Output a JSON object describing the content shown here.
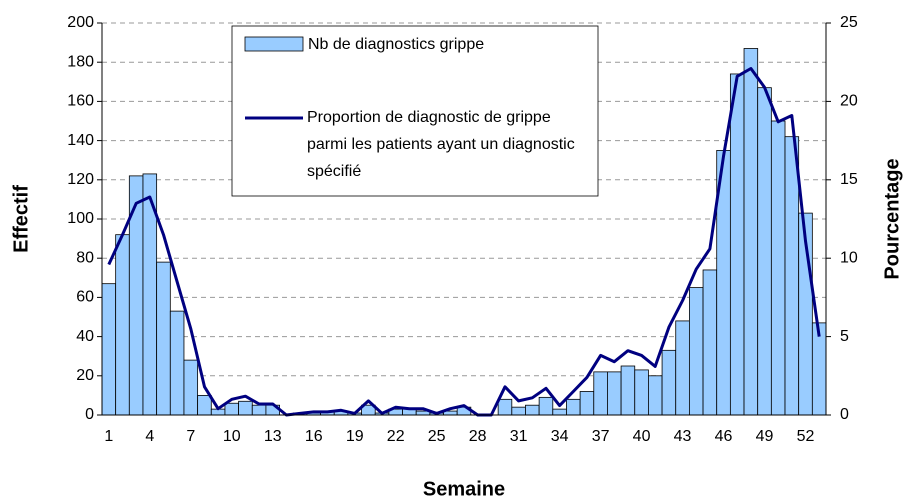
{
  "chart_data": {
    "type": "bar",
    "xlabel": "Semaine",
    "ylabel": "Effectif",
    "y2label": "Pourcentage",
    "categories": [
      1,
      null,
      null,
      4,
      null,
      null,
      7,
      null,
      null,
      10,
      null,
      null,
      13,
      null,
      null,
      16,
      null,
      null,
      19,
      null,
      null,
      22,
      null,
      null,
      25,
      null,
      null,
      28,
      null,
      null,
      31,
      null,
      null,
      34,
      null,
      null,
      37,
      null,
      null,
      40,
      null,
      null,
      43,
      null,
      null,
      46,
      null,
      null,
      49,
      null,
      null,
      52,
      null
    ],
    "series": [
      {
        "name": "Nb de diagnostics grippe",
        "type": "bar",
        "color": "#99ccff",
        "values": [
          67,
          92,
          122,
          123,
          78,
          53,
          28,
          10,
          3,
          6,
          7,
          5,
          5,
          0,
          1,
          1,
          2,
          2,
          1,
          5,
          1,
          3,
          3,
          2,
          1,
          2,
          4,
          0,
          0,
          8,
          4,
          5,
          9,
          3,
          8,
          12,
          22,
          22,
          25,
          23,
          20,
          33,
          48,
          65,
          74,
          135,
          174,
          187,
          167,
          150,
          142,
          103,
          47
        ]
      },
      {
        "name": "Proportion de diagnostic de grippe parmi les patients ayant un diagnostic spécifié",
        "type": "line",
        "axis": "y2",
        "color": "#000080",
        "values": [
          9.6,
          11.5,
          13.5,
          13.9,
          11.5,
          8.5,
          5.5,
          1.8,
          0.4,
          1.0,
          1.2,
          0.7,
          0.7,
          0,
          0.1,
          0.2,
          0.2,
          0.3,
          0.1,
          0.9,
          0.1,
          0.5,
          0.4,
          0.4,
          0.1,
          0.4,
          0.6,
          0,
          0,
          1.8,
          0.9,
          1.1,
          1.7,
          0.6,
          1.5,
          2.4,
          3.8,
          3.4,
          4.1,
          3.8,
          3.1,
          5.6,
          7.3,
          9.3,
          10.6,
          16.5,
          21.6,
          22.1,
          20.9,
          18.7,
          19.1,
          11.1,
          5.0
        ]
      }
    ],
    "ylim": [
      0,
      200
    ],
    "yticks": [
      0,
      20,
      40,
      60,
      80,
      100,
      120,
      140,
      160,
      180,
      200
    ],
    "y2lim": [
      0,
      25
    ],
    "y2ticks": [
      0,
      5,
      10,
      15,
      20,
      25
    ],
    "grid": true,
    "legend": "top"
  }
}
